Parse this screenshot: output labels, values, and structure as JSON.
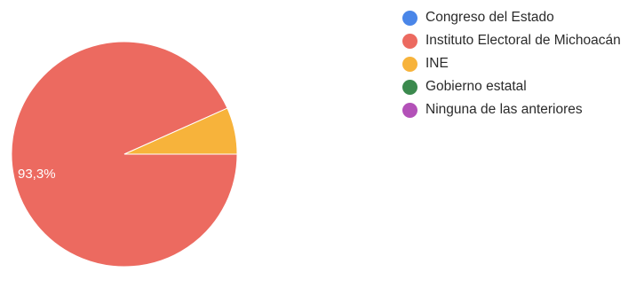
{
  "chart_data": {
    "type": "pie",
    "slices": [
      {
        "label": "Congreso del Estado",
        "value": 0,
        "color": "#4a86e8"
      },
      {
        "label": "Instituto Electoral de Michoacán",
        "value": 93.3,
        "color": "#ec6a60"
      },
      {
        "label": "INE",
        "value": 6.7,
        "color": "#f7b33b"
      },
      {
        "label": "Gobierno estatal",
        "value": 0,
        "color": "#3b8a4e"
      },
      {
        "label": "Ninguna de las anteriores",
        "value": 0,
        "color": "#b351b8"
      }
    ],
    "data_labels": [
      {
        "slice": "Instituto Electoral de Michoacán",
        "text": "93,3%"
      }
    ],
    "legend_position": "right"
  }
}
